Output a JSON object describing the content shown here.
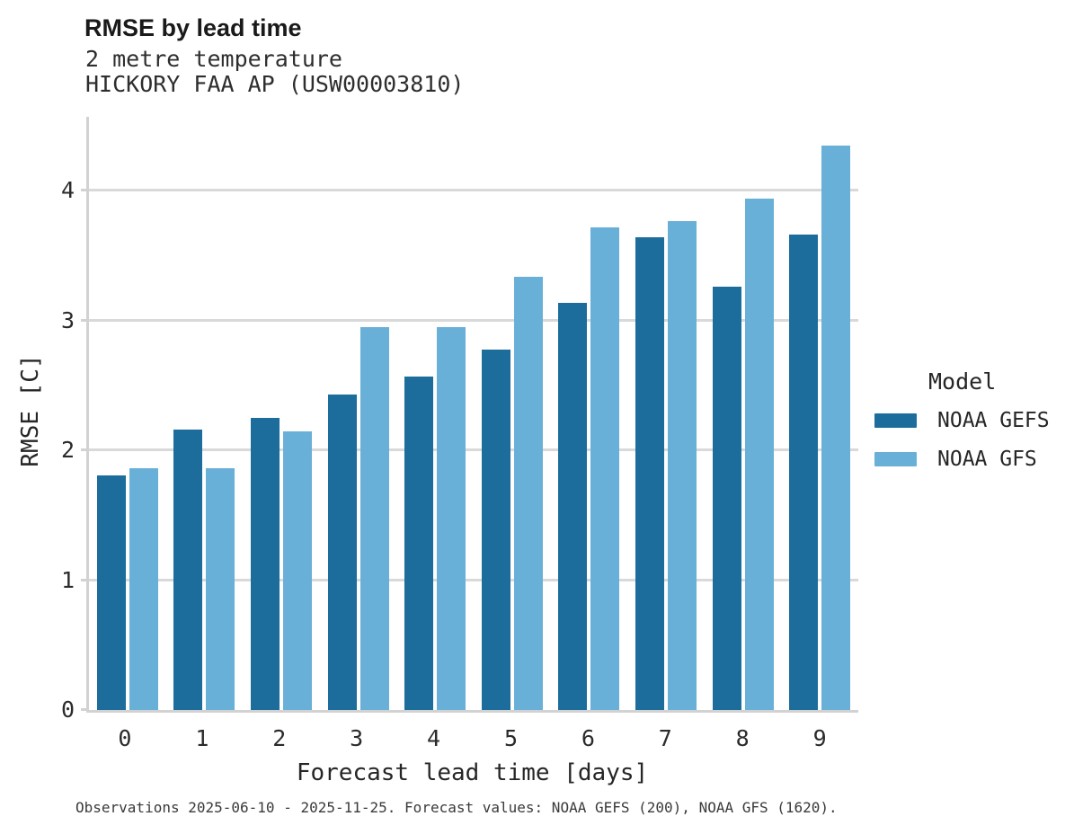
{
  "chart_data": {
    "type": "bar",
    "title": "RMSE by lead time",
    "subtitle": [
      "2 metre temperature",
      "HICKORY FAA AP (USW00003810)"
    ],
    "categories": [
      "0",
      "1",
      "2",
      "3",
      "4",
      "5",
      "6",
      "7",
      "8",
      "9"
    ],
    "series": [
      {
        "name": "NOAA GEFS",
        "color": "#1c6d9c",
        "values": [
          1.81,
          2.16,
          2.25,
          2.43,
          2.57,
          2.78,
          3.14,
          3.64,
          3.26,
          3.66
        ]
      },
      {
        "name": "NOAA GFS",
        "color": "#69b0d8",
        "values": [
          1.86,
          1.86,
          2.15,
          2.95,
          2.95,
          3.34,
          3.72,
          3.77,
          3.94,
          4.35
        ]
      }
    ],
    "xlabel": "Forecast lead time [days]",
    "ylabel": "RMSE [C]",
    "ylim": [
      0,
      4.57
    ],
    "yticks": [
      0,
      1,
      2,
      3,
      4
    ],
    "grid": true,
    "legend_title": "Model",
    "legend_position": "right"
  },
  "footer": {
    "note": "Observations 2025-06-10 - 2025-11-25. Forecast values: NOAA GEFS (200), NOAA GFS (1620)."
  },
  "colors": {
    "gefs_bar": "#1c6d9c",
    "gfs_bar": "#69b0d8",
    "gridline": "#d9d9d9",
    "axis_line": "#d2d2d2"
  }
}
